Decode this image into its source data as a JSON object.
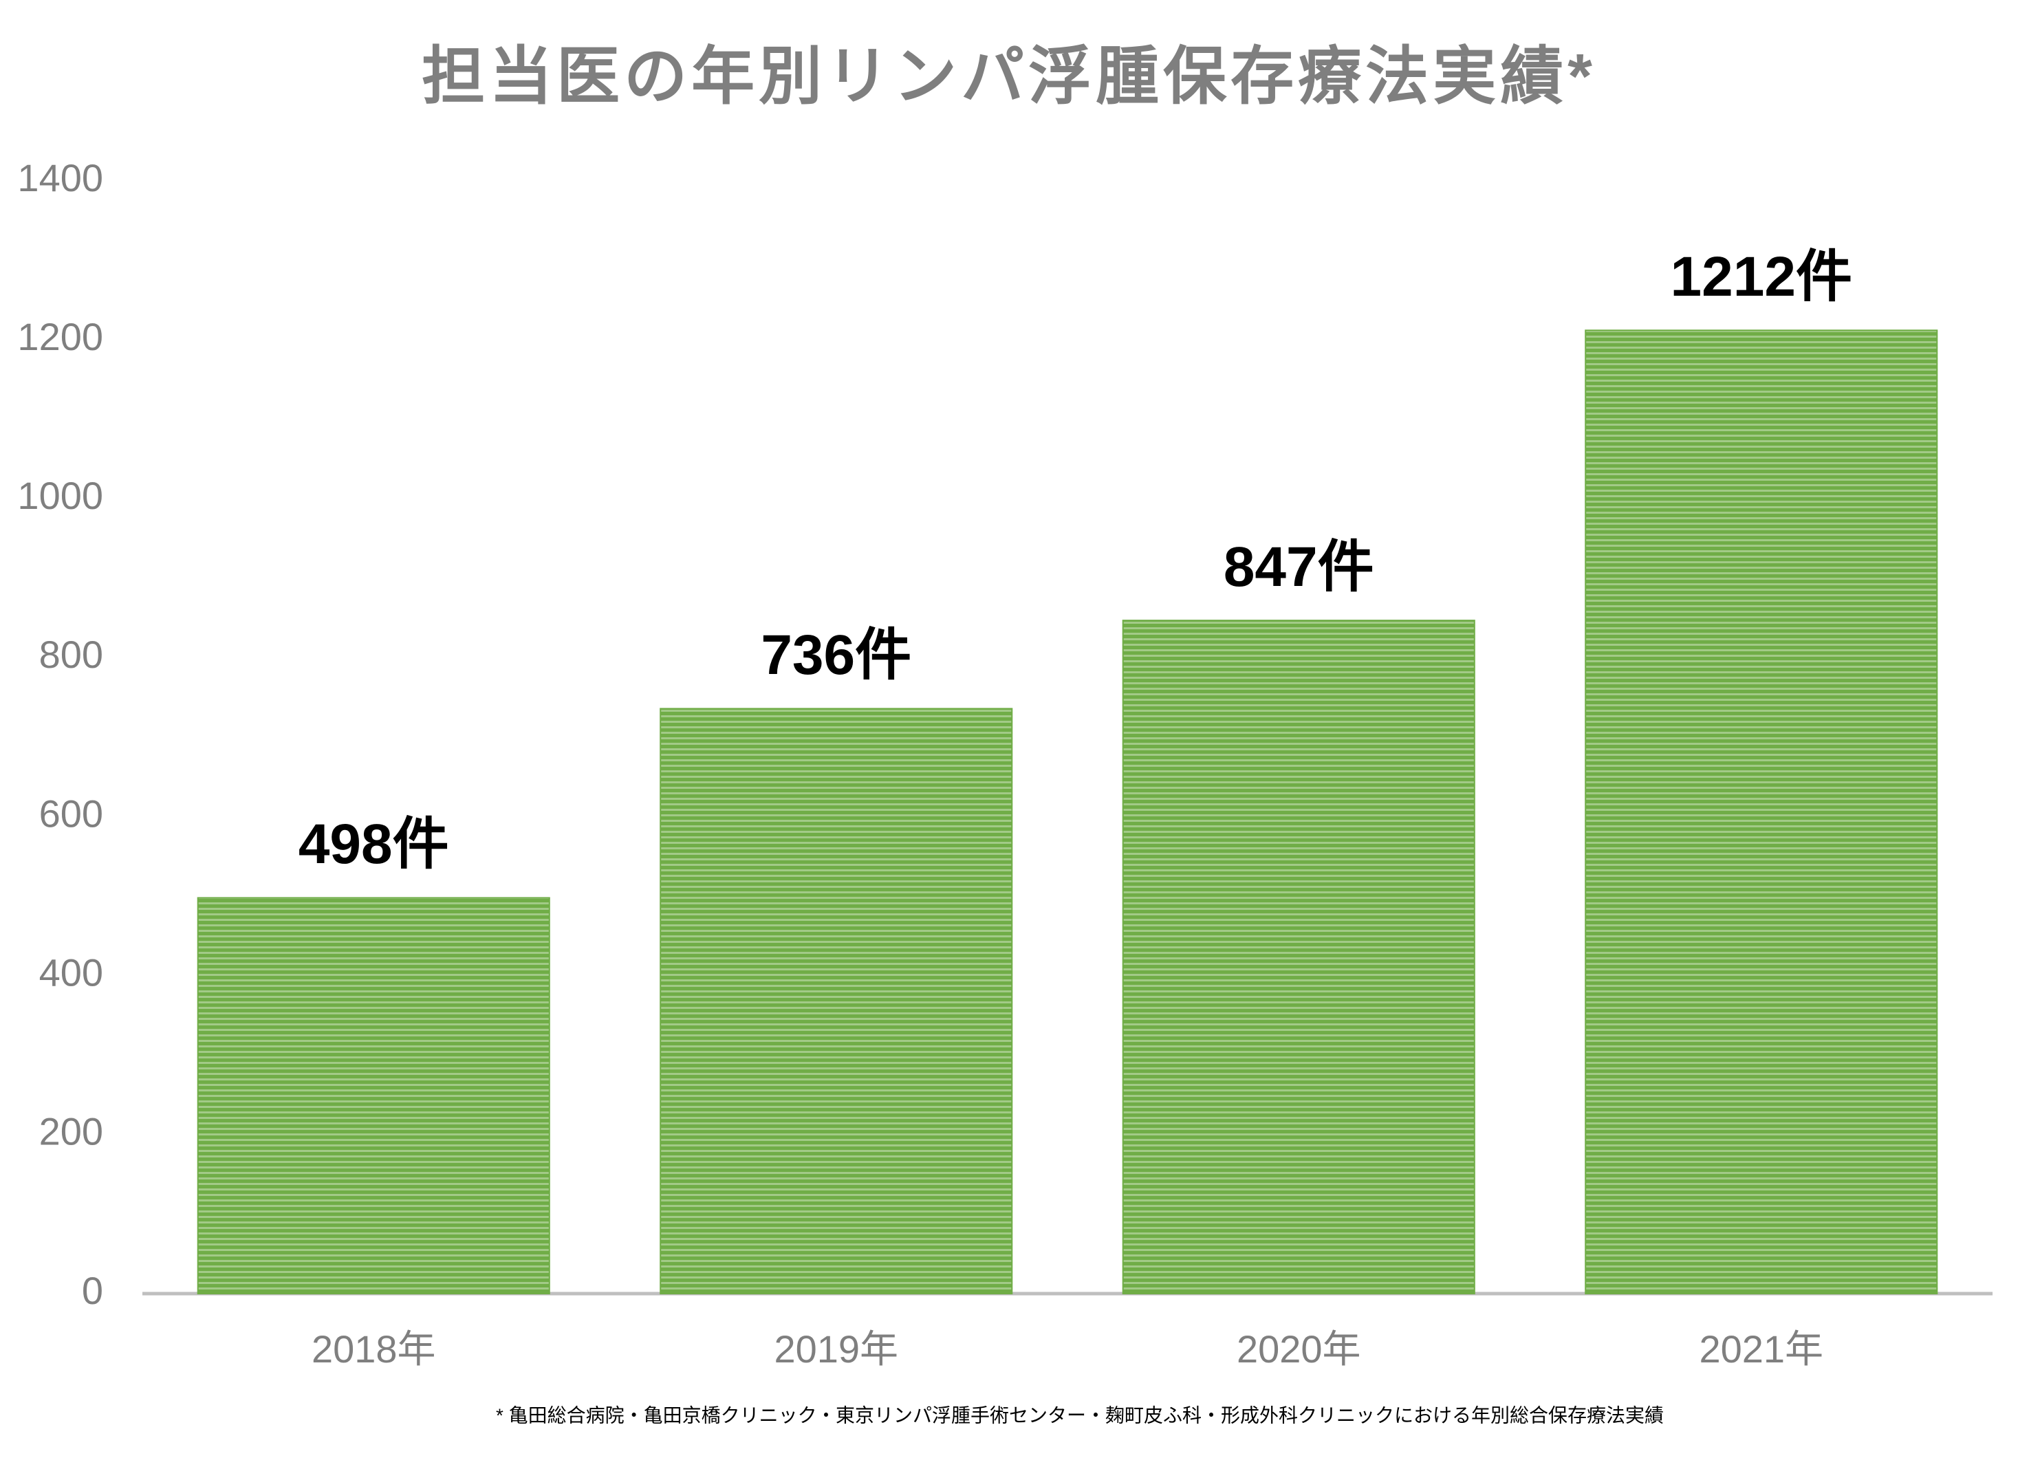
{
  "chart_data": {
    "type": "bar",
    "title": "担当医の年別リンパ浮腫保存療法実績*",
    "categories": [
      "2018年",
      "2019年",
      "2020年",
      "2021年"
    ],
    "values": [
      498,
      736,
      847,
      1212
    ],
    "value_labels": [
      "498件",
      "736件",
      "847件",
      "1212件"
    ],
    "color": "#70ad47",
    "ylim": [
      0,
      1400
    ],
    "yticks": [
      0,
      200,
      400,
      600,
      800,
      1000,
      1200,
      1400
    ],
    "grid": false,
    "footnote": "* 亀田総合病院・亀田京橋クリニック・東京リンパ浮腫手術センター・麹町皮ふ科・形成外科クリニックにおける年別総合保存療法実績"
  }
}
